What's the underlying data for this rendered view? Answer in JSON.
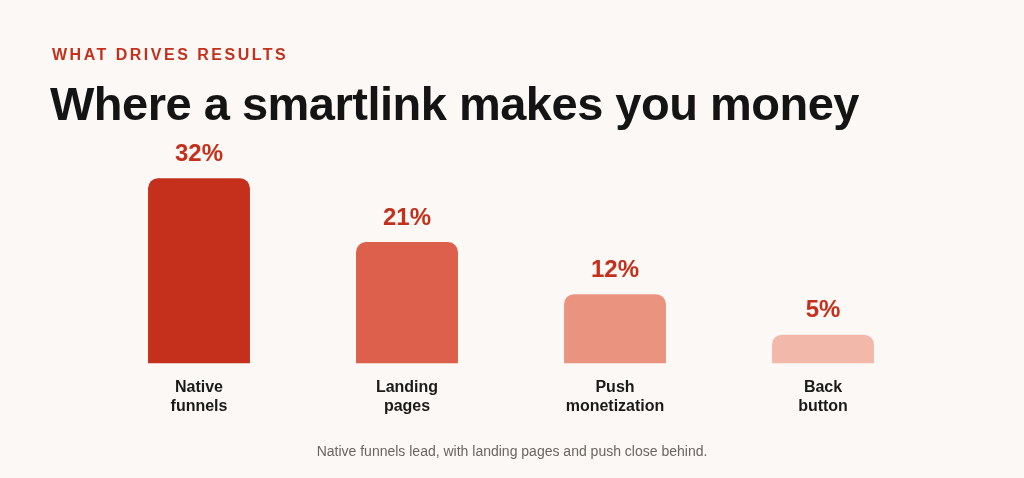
{
  "chart_data": {
    "type": "bar",
    "subtitle": "WHAT DRIVES RESULTS",
    "title": "Where a smartlink makes you money",
    "categories": [
      "Native funnels",
      "Landing pages",
      "Push monetization",
      "Back button"
    ],
    "values": [
      32,
      21,
      12,
      5
    ],
    "colors": [
      "#c4301c",
      "#dc604b",
      "#ea9480",
      "#f2b9aa"
    ],
    "value_labels": [
      "32%",
      "21%",
      "12%",
      "5%"
    ],
    "annotations": [
      "Native funnels lead, with landing pages and push close behind."
    ],
    "grid": false,
    "legend": false
  }
}
